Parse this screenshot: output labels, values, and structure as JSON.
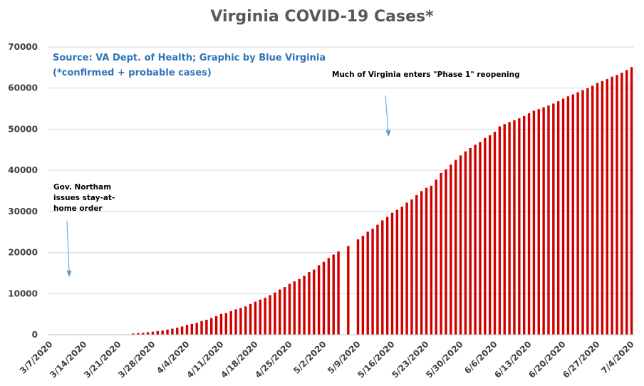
{
  "chart_data": {
    "type": "bar",
    "title": "Virginia COVID-19 Cases*",
    "xlabel": "",
    "ylabel": "",
    "ylim": [
      0,
      70000
    ],
    "y_ticks": [
      0,
      10000,
      20000,
      30000,
      40000,
      50000,
      60000,
      70000
    ],
    "x_tick_labels": [
      "3/7/2020",
      "3/14/2020",
      "3/21/2020",
      "3/28/2020",
      "4/4/2020",
      "4/11/2020",
      "4/18/2020",
      "4/25/2020",
      "5/2/2020",
      "5/9/2020",
      "5/16/2020",
      "5/23/2020",
      "5/30/2020",
      "6/6/2020",
      "6/13/2020",
      "6/20/2020",
      "6/27/2020",
      "7/4/2020"
    ],
    "grid": true,
    "bar_color": "#d10000",
    "source": "Source: VA Dept. of Health; Graphic by Blue Virginia",
    "source_note": "(*confirmed + probable cases)",
    "annotations": [
      {
        "lines": [
          "Gov. Northam",
          "issues stay-at-",
          "home order"
        ],
        "arrow_color": "#5b9bd5"
      },
      {
        "lines": [
          "Much of Virginia enters \"Phase 1\" reopening"
        ],
        "arrow_color": "#5b9bd5"
      }
    ],
    "dates": [
      "3/7/2020",
      "3/8/2020",
      "3/9/2020",
      "3/10/2020",
      "3/11/2020",
      "3/12/2020",
      "3/13/2020",
      "3/14/2020",
      "3/15/2020",
      "3/16/2020",
      "3/17/2020",
      "3/18/2020",
      "3/19/2020",
      "3/20/2020",
      "3/21/2020",
      "3/22/2020",
      "3/23/2020",
      "3/24/2020",
      "3/25/2020",
      "3/26/2020",
      "3/27/2020",
      "3/28/2020",
      "3/29/2020",
      "3/30/2020",
      "3/31/2020",
      "4/1/2020",
      "4/2/2020",
      "4/3/2020",
      "4/4/2020",
      "4/5/2020",
      "4/6/2020",
      "4/7/2020",
      "4/8/2020",
      "4/9/2020",
      "4/10/2020",
      "4/11/2020",
      "4/12/2020",
      "4/13/2020",
      "4/14/2020",
      "4/15/2020",
      "4/16/2020",
      "4/17/2020",
      "4/18/2020",
      "4/19/2020",
      "4/20/2020",
      "4/21/2020",
      "4/22/2020",
      "4/23/2020",
      "4/24/2020",
      "4/25/2020",
      "4/26/2020",
      "4/27/2020",
      "4/28/2020",
      "4/29/2020",
      "4/30/2020",
      "5/1/2020",
      "5/2/2020",
      "5/3/2020",
      "5/4/2020",
      "5/5/2020",
      "5/6/2020",
      "5/7/2020",
      "5/8/2020",
      "5/9/2020",
      "5/10/2020",
      "5/11/2020",
      "5/12/2020",
      "5/13/2020",
      "5/14/2020",
      "5/15/2020",
      "5/16/2020",
      "5/17/2020",
      "5/18/2020",
      "5/19/2020",
      "5/20/2020",
      "5/21/2020",
      "5/22/2020",
      "5/23/2020",
      "5/24/2020",
      "5/25/2020",
      "5/26/2020",
      "5/27/2020",
      "5/28/2020",
      "5/29/2020",
      "5/30/2020",
      "5/31/2020",
      "6/1/2020",
      "6/2/2020",
      "6/3/2020",
      "6/4/2020",
      "6/5/2020",
      "6/6/2020",
      "6/7/2020",
      "6/8/2020",
      "6/9/2020",
      "6/10/2020",
      "6/11/2020",
      "6/12/2020",
      "6/13/2020",
      "6/14/2020",
      "6/15/2020",
      "6/16/2020",
      "6/17/2020",
      "6/18/2020",
      "6/19/2020",
      "6/20/2020",
      "6/21/2020",
      "6/22/2020",
      "6/23/2020",
      "6/24/2020",
      "6/25/2020",
      "6/26/2020",
      "6/27/2020",
      "6/28/2020",
      "6/29/2020",
      "6/30/2020",
      "7/1/2020",
      "7/2/2020",
      "7/3/2020",
      "7/4/2020"
    ],
    "values": [
      0,
      0,
      0,
      0,
      0,
      0,
      0,
      0,
      0,
      0,
      0,
      0,
      0,
      0,
      0,
      0,
      0,
      290,
      391,
      460,
      604,
      739,
      890,
      1020,
      1250,
      1484,
      1706,
      2012,
      2407,
      2637,
      2878,
      3333,
      3645,
      4042,
      4509,
      5077,
      5274,
      5747,
      6171,
      6500,
      6889,
      7491,
      8053,
      8542,
      8990,
      9630,
      10266,
      10998,
      11594,
      12366,
      12970,
      13535,
      14339,
      15232,
      15846,
      16901,
      17731,
      18671,
      19492,
      20256,
      0,
      21570,
      0,
      23196,
      24081,
      25070,
      25800,
      26746,
      27813,
      28672,
      29683,
      30388,
      31140,
      32145,
      32908,
      33956,
      34950,
      35749,
      36244,
      37727,
      39342,
      40249,
      41401,
      42533,
      43611,
      44607,
      45398,
      46239,
      46905,
      47856,
      48532,
      49397,
      50681,
      51251,
      51738,
      52177,
      52647,
      53211,
      53869,
      54506,
      54886,
      55331,
      55775,
      56238,
      56793,
      57443,
      57994,
      58465,
      58994,
      59514,
      59946,
      60570,
      61247,
      61736,
      62189,
      62787,
      63203,
      63735,
      64393,
      65109
    ]
  }
}
